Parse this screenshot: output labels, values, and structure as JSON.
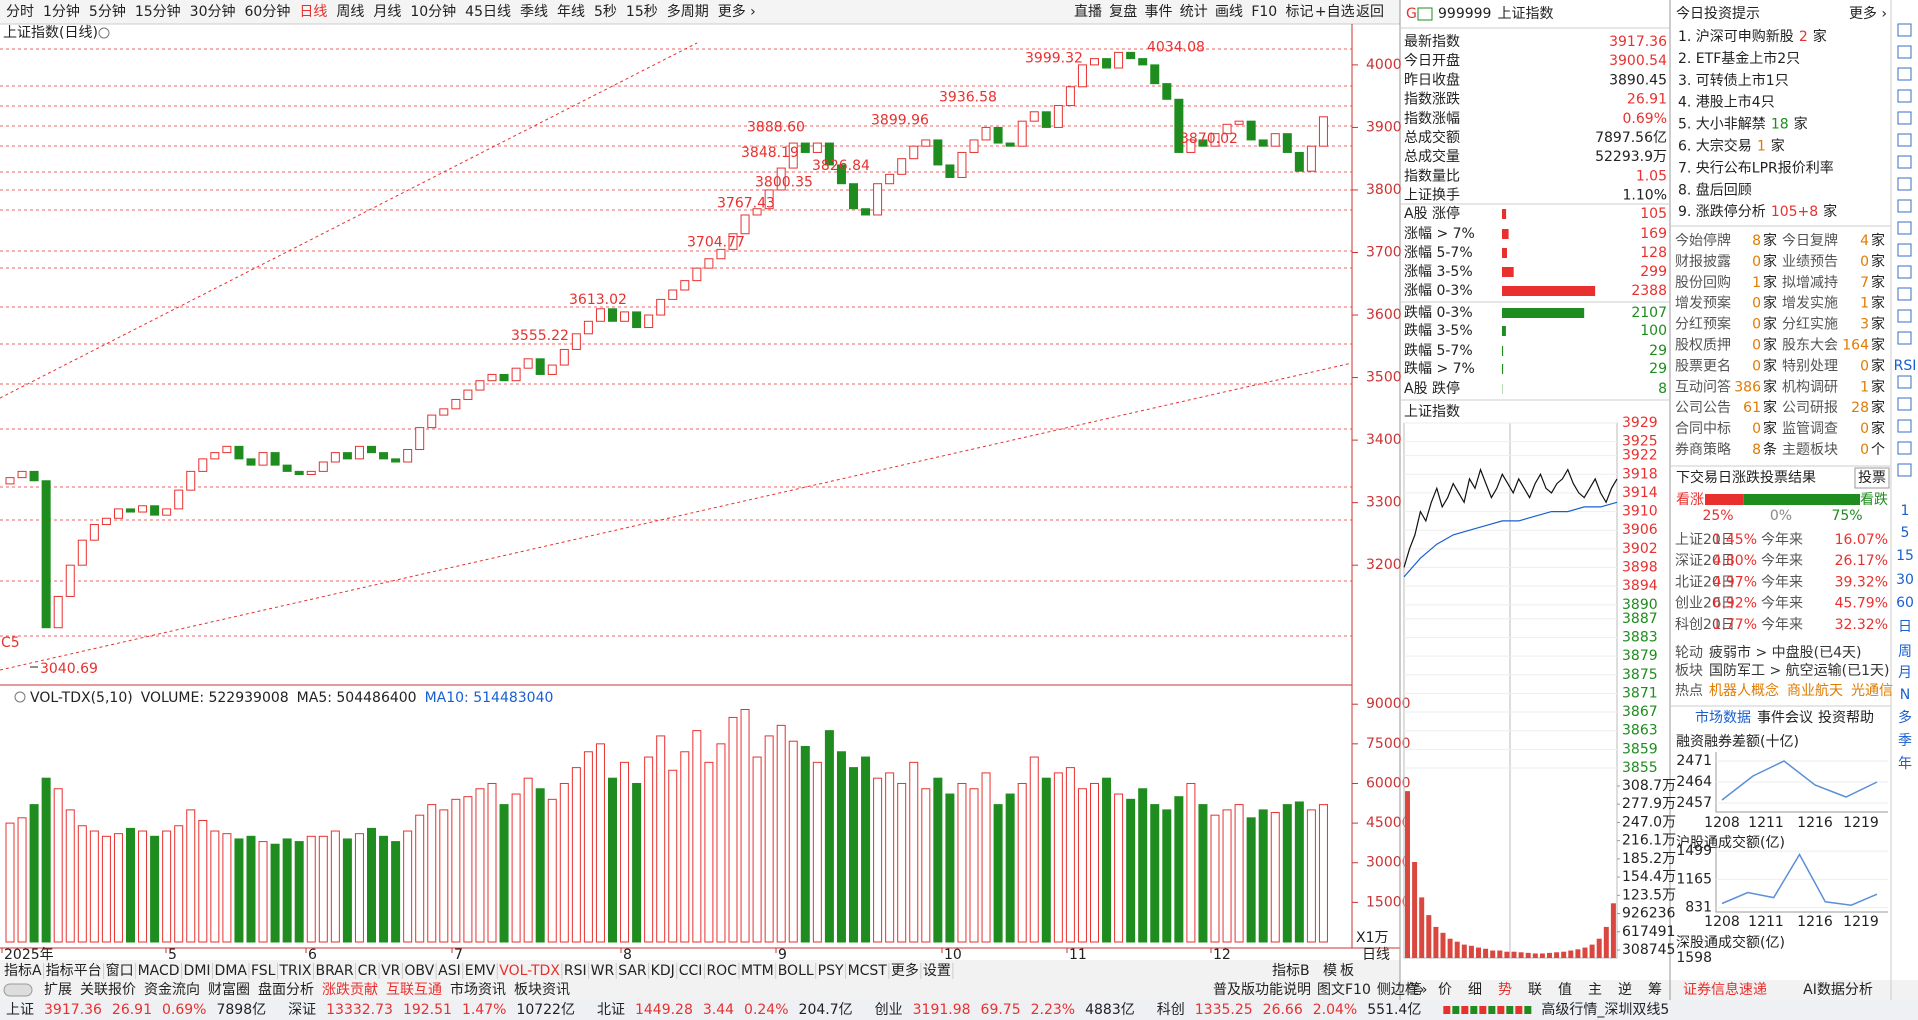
{
  "toolbar": {
    "periods": [
      "分时",
      "1分钟",
      "5分钟",
      "15分钟",
      "30分钟",
      "60分钟",
      "日线",
      "周线",
      "月线",
      "10分钟",
      "45日线",
      "季线",
      "年线",
      "5秒",
      "15秒",
      "多周期",
      "更多 ›"
    ],
    "active_period": 6,
    "active_color": "#e8312f",
    "tools": [
      "直播",
      "复盘",
      "事件",
      "统计",
      "画线",
      "F10",
      "标记",
      "+自选",
      "返回"
    ]
  },
  "chart": {
    "type": "candlestick",
    "title": "上证指数(日线)",
    "open": 3330,
    "closes": [
      3340,
      3350,
      3335,
      3100,
      3150,
      3200,
      3240,
      3265,
      3275,
      3290,
      3285,
      3295,
      3280,
      3290,
      3320,
      3350,
      3370,
      3380,
      3390,
      3370,
      3360,
      3380,
      3360,
      3350,
      3345,
      3350,
      3365,
      3380,
      3370,
      3390,
      3380,
      3370,
      3365,
      3385,
      3420,
      3440,
      3450,
      3465,
      3480,
      3495,
      3505,
      3495,
      3515,
      3530,
      3505,
      3520,
      3545,
      3570,
      3590,
      3610,
      3590,
      3605,
      3580,
      3600,
      3625,
      3640,
      3655,
      3675,
      3690,
      3705,
      3730,
      3760,
      3770,
      3800,
      3835,
      3875,
      3860,
      3875,
      3840,
      3810,
      3770,
      3760,
      3810,
      3825,
      3850,
      3870,
      3880,
      3840,
      3820,
      3860,
      3880,
      3900,
      3875,
      3870,
      3910,
      3925,
      3900,
      3935,
      3965,
      4000,
      4010,
      3995,
      4020,
      4010,
      4000,
      3970,
      3945,
      3860,
      3880,
      3870,
      3890,
      3905,
      3910,
      3880,
      3870,
      3890,
      3860,
      3830,
      3870,
      3917
    ],
    "ylim": [
      3018,
      4035
    ],
    "yticks": [
      4000,
      3900,
      3800,
      3700,
      3600,
      3500,
      3400,
      3300,
      3200
    ],
    "months": [
      "2025年",
      "5",
      "6",
      "7",
      "8",
      "9",
      "10",
      "11",
      "12"
    ],
    "period_label": "日线",
    "up_color": "#e8312f",
    "down_color": "#1e8c1e",
    "marker": "C5",
    "annotations": [
      {
        "value": 4034.08,
        "label": "4034.08"
      },
      {
        "value": 3999.32,
        "label": "3999.32"
      },
      {
        "value": 3936.58,
        "label": "3936.58"
      },
      {
        "value": 3899.96,
        "label": "3899.96"
      },
      {
        "value": 3888.6,
        "label": "3888.60"
      },
      {
        "value": 3848.19,
        "label": "3848.19"
      },
      {
        "value": 3826.84,
        "label": "3826.84"
      },
      {
        "value": 3800.35,
        "label": "3800.35"
      },
      {
        "value": 3767.43,
        "label": "3767.43"
      },
      {
        "value": 3704.77,
        "label": "3704.77"
      },
      {
        "value": 3613.02,
        "label": "3613.02"
      },
      {
        "value": 3555.22,
        "label": "3555.22"
      },
      {
        "value": 3870.02,
        "label": "3870.02"
      },
      {
        "value": 3040.69,
        "label": "3040.69"
      }
    ]
  },
  "volume": {
    "title": "VOL-TDX(5,10)",
    "readouts": [
      "VOLUME: 522939008",
      "MA5: 504486400",
      "MA10: 514483040"
    ],
    "readout_colors": [
      "#222",
      "#222",
      "#1a5fd1"
    ],
    "values": [
      45000,
      47000,
      52000,
      62000,
      58000,
      50000,
      44000,
      42000,
      40000,
      41000,
      43000,
      42000,
      40000,
      42000,
      44000,
      50000,
      46000,
      42000,
      41000,
      39000,
      40000,
      38000,
      37000,
      39000,
      38000,
      40000,
      40000,
      42000,
      39000,
      41000,
      43000,
      40000,
      38000,
      42000,
      48000,
      52000,
      50000,
      54000,
      55000,
      58000,
      60000,
      52000,
      56000,
      62000,
      58000,
      54000,
      60000,
      66000,
      72000,
      75000,
      62000,
      68000,
      60000,
      70000,
      78000,
      65000,
      72000,
      80000,
      68000,
      75000,
      85000,
      88000,
      70000,
      78000,
      82000,
      76000,
      74000,
      68000,
      80000,
      72000,
      66000,
      70000,
      62000,
      64000,
      60000,
      68000,
      58000,
      62000,
      56000,
      60000,
      58000,
      64000,
      52000,
      56000,
      60000,
      70000,
      62000,
      64000,
      66000,
      58000,
      60000,
      62000,
      56000,
      54000,
      58000,
      52000,
      50000,
      55000,
      60000,
      52000,
      48000,
      50000,
      52000,
      47000,
      50000,
      49000,
      52000,
      53000,
      50000,
      52000
    ],
    "ylim": [
      0,
      95000
    ],
    "yticks": [
      90000,
      75000,
      60000,
      45000,
      30000,
      15000
    ],
    "unit": "X1万"
  },
  "quote": {
    "flag": "G",
    "code": "999999",
    "name": "上证指数",
    "rows": [
      {
        "label": "最新指数",
        "value": 3917.36,
        "color": "#e8312f"
      },
      {
        "label": "今日开盘",
        "value": 3900.54,
        "color": "#e8312f"
      },
      {
        "label": "昨日收盘",
        "value": 3890.45,
        "color": "#222"
      },
      {
        "label": "指数涨跌",
        "value": 26.91,
        "color": "#e8312f"
      },
      {
        "label": "指数涨幅",
        "value": "0.69%",
        "color": "#e8312f"
      },
      {
        "label": "总成交额",
        "value": "7897.56亿",
        "color": "#222"
      },
      {
        "label": "总成交量",
        "value": "52293.9万",
        "color": "#222"
      },
      {
        "label": "指数量比",
        "value": 1.05,
        "color": "#e8312f"
      },
      {
        "label": "上证换手",
        "value": "1.10%",
        "color": "#222"
      }
    ]
  },
  "breadth": {
    "rows": [
      {
        "label": "A股 涨停",
        "value": 105,
        "color": "#e8312f"
      },
      {
        "label": "涨幅 > 7%",
        "value": 169,
        "color": "#e8312f"
      },
      {
        "label": "涨幅 5-7%",
        "value": 128,
        "color": "#e8312f"
      },
      {
        "label": "涨幅 3-5%",
        "value": 299,
        "color": "#e8312f"
      },
      {
        "label": "涨幅 0-3%",
        "value": 2388,
        "color": "#e8312f"
      },
      {
        "label": "跌幅 0-3%",
        "value": 2107,
        "color": "#1e8c1e"
      },
      {
        "label": "跌幅 3-5%",
        "value": 100,
        "color": "#1e8c1e"
      },
      {
        "label": "跌幅 5-7%",
        "value": 29,
        "color": "#1e8c1e"
      },
      {
        "label": "跌幅 > 7%",
        "value": 29,
        "color": "#1e8c1e"
      },
      {
        "label": "A股 跌停",
        "value": 8,
        "color": "#1e8c1e"
      }
    ]
  },
  "intraday": {
    "title": "上证指数",
    "ref": 3890.45,
    "line_color": "#111",
    "avg_color": "#1a5fd1",
    "volume_color": "#d9473f",
    "price": [
      3898,
      3902,
      3905,
      3910,
      3908,
      3912,
      3915,
      3911,
      3913,
      3916,
      3914,
      3912,
      3917,
      3915,
      3919,
      3916,
      3913,
      3915,
      3918,
      3916,
      3914,
      3917,
      3915,
      3913,
      3916,
      3918,
      3915,
      3914,
      3916,
      3917,
      3919,
      3916,
      3914,
      3913,
      3915,
      3917,
      3914,
      3912,
      3915,
      3917
    ],
    "avg": [
      3896,
      3900,
      3903,
      3905,
      3906,
      3907,
      3908,
      3908,
      3909,
      3910,
      3910,
      3911,
      3911,
      3912
    ],
    "price_ticks": [
      3929,
      3925,
      3922,
      3918,
      3914,
      3910,
      3906,
      3902,
      3898,
      3894,
      3890,
      3887,
      3883,
      3879,
      3875,
      3871,
      3867,
      3863,
      3859,
      3855
    ],
    "volume": [
      300,
      180,
      120,
      90,
      70,
      60,
      50,
      45,
      40,
      38,
      35,
      33,
      30,
      30,
      28,
      28,
      27,
      26,
      25,
      25,
      26,
      27,
      28,
      30,
      32,
      35,
      40,
      50,
      70,
      110
    ],
    "volume_ticks": [
      {
        "value": 308.7,
        "label": "308.7万"
      },
      {
        "value": 277.9,
        "label": "277.9万"
      },
      {
        "value": 247.0,
        "label": "247.0万"
      },
      {
        "value": 216.1,
        "label": "216.1万"
      },
      {
        "value": 185.2,
        "label": "185.2万"
      },
      {
        "value": 154.4,
        "label": "154.4万"
      },
      {
        "value": 123.5,
        "label": "123.5万"
      },
      {
        "value": 92.6236,
        "label": "926236"
      },
      {
        "value": 61.7491,
        "label": "617491"
      },
      {
        "value": 30.8745,
        "label": "308745"
      }
    ]
  },
  "tips": {
    "title": "今日投资提示",
    "more": "更多 ›",
    "items": [
      {
        "label": "1. 沪深可申购新股",
        "count": 2,
        "unit": "家",
        "color": "#e8312f"
      },
      {
        "label": "2. ETF基金上市2只"
      },
      {
        "label": "3. 可转债上市1只"
      },
      {
        "label": "4. 港股上市4只"
      },
      {
        "label": "5. 大小非解禁",
        "count": 18,
        "unit": "家",
        "color": "#1e8c1e"
      },
      {
        "label": "6. 大宗交易",
        "count": 1,
        "unit": "家",
        "color": "#e07b00"
      },
      {
        "label": "7. 央行公布LPR报价利率"
      },
      {
        "label": "8. 盘后回顾"
      },
      {
        "label": "9. 涨跌停分析",
        "count": "105+8",
        "unit": "家",
        "color": "#e8312f"
      }
    ]
  },
  "events": {
    "count_color": "#e07b00",
    "rows": [
      [
        {
          "label": "今始停牌",
          "count": 8,
          "unit": "家"
        },
        {
          "label": "今日复牌",
          "count": 4,
          "unit": "家"
        }
      ],
      [
        {
          "label": "财报披露",
          "count": 0,
          "unit": "家"
        },
        {
          "label": "业绩预告",
          "count": 0,
          "unit": "家"
        }
      ],
      [
        {
          "label": "股份回购",
          "count": 1,
          "unit": "家"
        },
        {
          "label": "拟增减持",
          "count": 7,
          "unit": "家"
        }
      ],
      [
        {
          "label": "增发预案",
          "count": 0,
          "unit": "家"
        },
        {
          "label": "增发实施",
          "count": 1,
          "unit": "家"
        }
      ],
      [
        {
          "label": "分红预案",
          "count": 0,
          "unit": "家"
        },
        {
          "label": "分红实施",
          "count": 3,
          "unit": "家"
        }
      ],
      [
        {
          "label": "股权质押",
          "count": 0,
          "unit": "家"
        },
        {
          "label": "股东大会",
          "count": 164,
          "unit": "家"
        }
      ],
      [
        {
          "label": "股票更名",
          "count": 0,
          "unit": "家"
        },
        {
          "label": "特别处理",
          "count": 0,
          "unit": "家"
        }
      ],
      [
        {
          "label": "互动问答",
          "count": 386,
          "unit": "家"
        },
        {
          "label": "机构调研",
          "count": 1,
          "unit": "家"
        }
      ],
      [
        {
          "label": "公司公告",
          "count": 61,
          "unit": "家"
        },
        {
          "label": "公司研报",
          "count": 28,
          "unit": "家"
        }
      ],
      [
        {
          "label": "合同中标",
          "count": 0,
          "unit": "家"
        },
        {
          "label": "监管调查",
          "count": 0,
          "unit": "家"
        }
      ],
      [
        {
          "label": "券商策略",
          "count": 8,
          "unit": "条"
        },
        {
          "label": "主题板块",
          "count": 0,
          "unit": "个"
        }
      ]
    ]
  },
  "vote": {
    "title": "下交易日涨跌投票结果",
    "button": "投票",
    "up_label": "看涨",
    "down_label": "看跌",
    "values": [
      25,
      0,
      75
    ],
    "value_labels": [
      "25%",
      "0%",
      "75%"
    ],
    "colors": [
      "#e8312f",
      "#888",
      "#1e8c1e"
    ]
  },
  "returns": {
    "ytd_label": "今年来",
    "rows": [
      {
        "label": "上证20日",
        "value": "1.45%",
        "ytd": "16.07%"
      },
      {
        "label": "深证20日",
        "value": "4.80%",
        "ytd": "26.17%"
      },
      {
        "label": "北证20日",
        "value": "4.97%",
        "ytd": "39.32%"
      },
      {
        "label": "创业20日",
        "value": "6.92%",
        "ytd": "45.79%"
      },
      {
        "label": "科创20日",
        "value": "1.77%",
        "ytd": "32.32%"
      }
    ]
  },
  "rotation": [
    {
      "label": "轮动",
      "items": [
        "疲弱市 > 中盘股(已4天)"
      ],
      "color": "#333"
    },
    {
      "label": "板块",
      "items": [
        "国防军工 > 航空运输(已1天)"
      ],
      "color": "#333"
    },
    {
      "label": "热点",
      "items": [
        "机器人概念",
        "商业航天",
        "光通信"
      ],
      "color": "#e07b00"
    }
  ],
  "links": [
    "市场数据",
    "事件会议",
    "投资帮助"
  ],
  "minis": [
    {
      "title": "融资融券差额(十亿)",
      "ylim": [
        2454,
        2474
      ],
      "yticks": [
        2471,
        2464,
        2457
      ],
      "xticks": [
        "1208",
        "1211",
        "1216",
        "1219"
      ],
      "values": [
        2458,
        2466,
        2471,
        2463,
        2459,
        2464
      ],
      "color": "#5b8fd6"
    },
    {
      "title": "沪股通成交额(亿)",
      "ylim": [
        780,
        1560
      ],
      "yticks": [
        1499,
        1165,
        831
      ],
      "xticks": [
        "1208",
        "1211",
        "1216",
        "1219"
      ],
      "values": [
        880,
        1010,
        950,
        1460,
        900,
        860,
        990
      ],
      "color": "#5b8fd6"
    },
    {
      "title": "深股通成交额(亿)",
      "yticks": [
        1598
      ]
    }
  ],
  "side": [
    "RSI",
    "1",
    "5",
    "15",
    "30",
    "60",
    "日",
    "周",
    "月",
    "N",
    "多",
    "季",
    "年"
  ],
  "indicator_tabs": [
    "指标A",
    "指标平台",
    "窗口",
    "MACD",
    "DMI",
    "DMA",
    "FSL",
    "TRIX",
    "BRAR",
    "CR",
    "VR",
    "OBV",
    "ASI",
    "EMV",
    "VOL-TDX",
    "RSI",
    "WR",
    "SAR",
    "KDJ",
    "CCI",
    "ROC",
    "MTM",
    "BOLL",
    "PSY",
    "MCST",
    "更多",
    "设置"
  ],
  "active_indicator": 14,
  "indicator_right": [
    "指标B",
    "模",
    "板"
  ],
  "ext_tabs": [
    {
      "label": "扩展",
      "color": "#222"
    },
    {
      "label": "关联报价",
      "color": "#222"
    },
    {
      "label": "资金流向",
      "color": "#222"
    },
    {
      "label": "财富圈",
      "color": "#222"
    },
    {
      "label": "盘面分析",
      "color": "#222"
    },
    {
      "label": "涨跌贡献",
      "color": "#e8312f"
    },
    {
      "label": "互联互通",
      "color": "#e8312f"
    },
    {
      "label": "市场资讯",
      "color": "#222"
    },
    {
      "label": "板块资讯",
      "color": "#222"
    }
  ],
  "ext_right": [
    "普及版功能说明",
    "图文F10",
    "侧边栏»"
  ],
  "side_tabs": [
    "笔",
    "价",
    "细",
    "势",
    "联",
    "值",
    "主",
    "逆",
    "筹"
  ],
  "active_side_tab": 3,
  "news_tabs": [
    {
      "label": "证券信息速递",
      "color": "#e8312f"
    },
    {
      "label": "AI数据分析",
      "color": "#222"
    }
  ],
  "status": {
    "groups": [
      {
        "name": "上证",
        "last": 3917.36,
        "change": 26.91,
        "pct": "0.69%",
        "amount": "7898亿"
      },
      {
        "name": "深证",
        "last": 13332.73,
        "change": 192.51,
        "pct": "1.47%",
        "amount": "10722亿"
      },
      {
        "name": "北证",
        "last": 1449.28,
        "change": 3.44,
        "pct": "0.24%",
        "amount": "204.7亿"
      },
      {
        "name": "创业",
        "last": 3191.98,
        "change": 69.75,
        "pct": "2.23%",
        "amount": "4883亿"
      },
      {
        "name": "科创",
        "last": 1335.25,
        "change": 26.66,
        "pct": "2.04%",
        "amount": "551.4亿"
      }
    ],
    "up_color": "#e8312f",
    "feed": "高级行情_深圳双线5"
  }
}
